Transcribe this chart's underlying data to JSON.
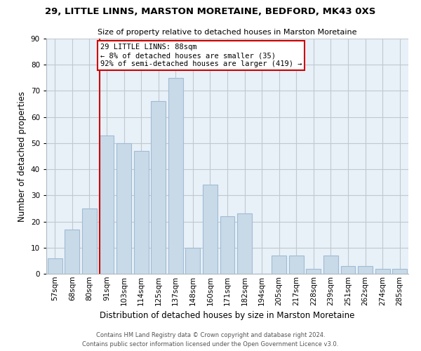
{
  "title": "29, LITTLE LINNS, MARSTON MORETAINE, BEDFORD, MK43 0XS",
  "subtitle": "Size of property relative to detached houses in Marston Moretaine",
  "xlabel": "Distribution of detached houses by size in Marston Moretaine",
  "ylabel": "Number of detached properties",
  "bar_labels": [
    "57sqm",
    "68sqm",
    "80sqm",
    "91sqm",
    "103sqm",
    "114sqm",
    "125sqm",
    "137sqm",
    "148sqm",
    "160sqm",
    "171sqm",
    "182sqm",
    "194sqm",
    "205sqm",
    "217sqm",
    "228sqm",
    "239sqm",
    "251sqm",
    "262sqm",
    "274sqm",
    "285sqm"
  ],
  "bar_values": [
    6,
    17,
    25,
    53,
    50,
    47,
    66,
    75,
    10,
    34,
    22,
    23,
    0,
    7,
    7,
    2,
    7,
    3,
    3,
    2,
    2
  ],
  "bar_color": "#c8d9e8",
  "bar_edge_color": "#a0bcd4",
  "ax_face_color": "#e8f0f8",
  "property_line_color": "#cc0000",
  "annotation_line1": "29 LITTLE LINNS: 88sqm",
  "annotation_line2": "← 8% of detached houses are smaller (35)",
  "annotation_line3": "92% of semi-detached houses are larger (419) →",
  "annotation_box_color": "#ffffff",
  "annotation_box_edge_color": "#cc0000",
  "ylim": [
    0,
    90
  ],
  "yticks": [
    0,
    10,
    20,
    30,
    40,
    50,
    60,
    70,
    80,
    90
  ],
  "footer_line1": "Contains HM Land Registry data © Crown copyright and database right 2024.",
  "footer_line2": "Contains public sector information licensed under the Open Government Licence v3.0.",
  "background_color": "#ffffff",
  "grid_color": "#c0c8d0",
  "title_fontsize": 9.5,
  "subtitle_fontsize": 8.0,
  "ylabel_fontsize": 8.5,
  "xlabel_fontsize": 8.5,
  "tick_fontsize": 7.5,
  "annotation_fontsize": 7.5,
  "footer_fontsize": 6.0
}
